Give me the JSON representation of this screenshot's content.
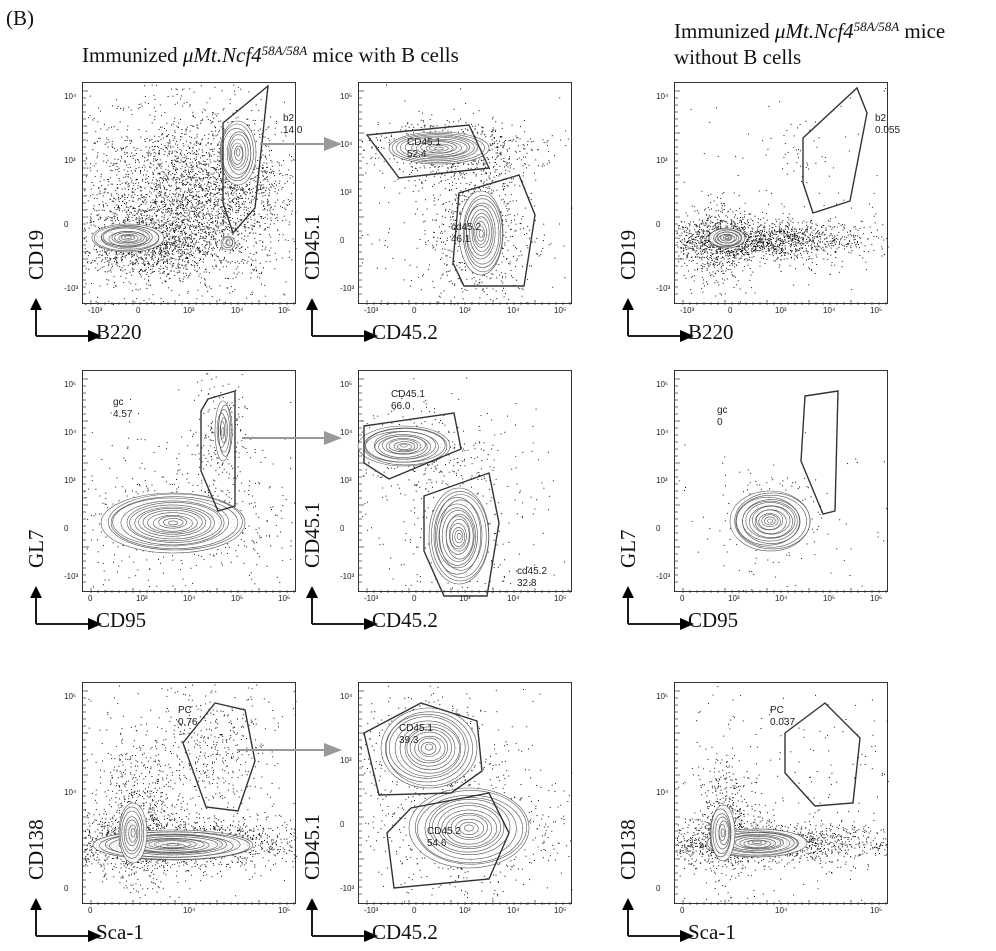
{
  "figure": {
    "panel_letter": "(B)",
    "headings": {
      "with_b": {
        "prefix": "Immunized ",
        "strain": "μMt.Ncf4",
        "genotype": "58A/58A",
        "suffix": " mice with B cells"
      },
      "without_b": {
        "prefix": "Immunized ",
        "strain": "μMt.Ncf4",
        "genotype": "58A/58A",
        "suffix": " mice",
        "line2": "without B cells"
      }
    },
    "colors": {
      "dots": "#111111",
      "contour": "#555555",
      "gate": "#333333",
      "arrow": "#999999"
    },
    "rows": [
      {
        "plots": [
          {
            "x_axis": "B220",
            "y_axis": "CD19",
            "yticks": [
              "10⁴",
              "10³",
              "0",
              "-10³"
            ],
            "xticks": [
              "-10³",
              "0",
              "10³",
              "10⁴",
              "10⁵"
            ],
            "gates": [
              {
                "name": "b2",
                "value": "14.0"
              }
            ]
          },
          {
            "x_axis": "CD45.2",
            "y_axis": "CD45.1",
            "yticks": [
              "10⁵",
              "10⁴",
              "10³",
              "0",
              "-10³"
            ],
            "xticks": [
              "-10³",
              "0",
              "10³",
              "10⁴",
              "10⁵"
            ],
            "gates": [
              {
                "name": "CD45.1",
                "value": "52.4"
              },
              {
                "name": "cd45.2",
                "value": "46.1"
              }
            ]
          },
          {
            "x_axis": "B220",
            "y_axis": "CD19",
            "yticks": [
              "10⁴",
              "10³",
              "0",
              "-10³"
            ],
            "xticks": [
              "-10³",
              "0",
              "10³",
              "10⁴",
              "10⁵"
            ],
            "gates": [
              {
                "name": "b2",
                "value": "0.055"
              }
            ]
          }
        ]
      },
      {
        "plots": [
          {
            "x_axis": "CD95",
            "y_axis": "GL7",
            "yticks": [
              "10⁵",
              "10⁴",
              "10³",
              "0",
              "-10³"
            ],
            "xticks": [
              "0",
              "10³",
              "10⁴",
              "10⁵",
              "10⁶"
            ],
            "gates": [
              {
                "name": "gc",
                "value": "4.57"
              }
            ]
          },
          {
            "x_axis": "CD45.2",
            "y_axis": "CD45.1",
            "yticks": [
              "10⁵",
              "10⁴",
              "10³",
              "0",
              "-10³"
            ],
            "xticks": [
              "-10³",
              "0",
              "10³",
              "10⁴",
              "10⁵"
            ],
            "gates": [
              {
                "name": "CD45.1",
                "value": "66.0"
              },
              {
                "name": "cd45.2",
                "value": "32.8"
              }
            ]
          },
          {
            "x_axis": "CD95",
            "y_axis": "GL7",
            "yticks": [
              "10⁵",
              "10⁴",
              "10³",
              "0",
              "-10³"
            ],
            "xticks": [
              "0",
              "10³",
              "10⁴",
              "10⁵",
              "10⁶"
            ],
            "gates": [
              {
                "name": "gc",
                "value": "0"
              }
            ]
          }
        ]
      },
      {
        "plots": [
          {
            "x_axis": "Sca-1",
            "y_axis": "CD138",
            "yticks": [
              "10⁵",
              "10⁴",
              "0"
            ],
            "xticks": [
              "0",
              "10⁴",
              "10⁵"
            ],
            "gates": [
              {
                "name": "PC",
                "value": "0.76"
              }
            ]
          },
          {
            "x_axis": "CD45.2",
            "y_axis": "CD45.1",
            "yticks": [
              "10⁴",
              "10³",
              "0",
              "-10³"
            ],
            "xticks": [
              "-10³",
              "0",
              "10³",
              "10⁴",
              "10⁵"
            ],
            "gates": [
              {
                "name": "CD45.1",
                "value": "39.3"
              },
              {
                "name": "CD45.2",
                "value": "54.6"
              }
            ]
          },
          {
            "x_axis": "Sca-1",
            "y_axis": "CD138",
            "yticks": [
              "10⁵",
              "10⁴",
              "0"
            ],
            "xticks": [
              "0",
              "10⁴",
              "10⁵"
            ],
            "gates": [
              {
                "name": "PC",
                "value": "0.037"
              }
            ]
          }
        ]
      }
    ]
  }
}
